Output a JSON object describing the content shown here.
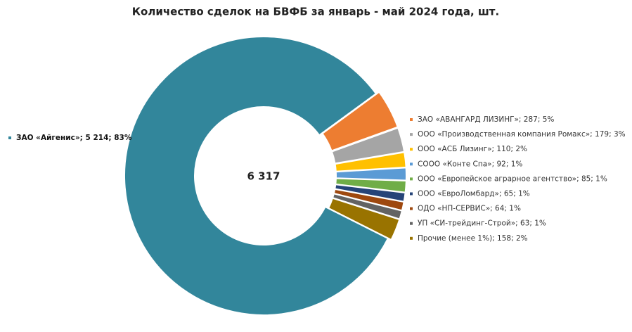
{
  "chart_data": {
    "type": "pie",
    "title": "Количество сделок на БВФБ за январь - май 2024 года, шт.",
    "center_label": "6 317",
    "categories": [
      "ЗАО «Айгенис»; 5 214; 83%",
      "ЗАО «АВАНГАРД ЛИЗИНГ»; 287; 5%",
      "ООО «Производственная компания Ромакс»; 179; 3%",
      "ООО «АСБ Лизинг»; 110; 2%",
      "СООО «Конте Спа»; 92; 1%",
      "ООО «Европейское аграрное агентство»; 85; 1%",
      "ООО «ЕвроЛомбард»; 65; 1%",
      "ОДО «НП-СЕРВИС»; 64; 1%",
      "УП «СИ-трейдинг-Строй»; 63; 1%",
      "Прочие (менее 1%); 158; 2%"
    ],
    "values": [
      5214,
      287,
      179,
      110,
      92,
      85,
      65,
      64,
      63,
      158
    ],
    "colors": [
      "#32869b",
      "#ed7d31",
      "#a5a5a5",
      "#ffc000",
      "#5b9bd5",
      "#70ad47",
      "#264478",
      "#9e480e",
      "#636363",
      "#997300"
    ]
  }
}
